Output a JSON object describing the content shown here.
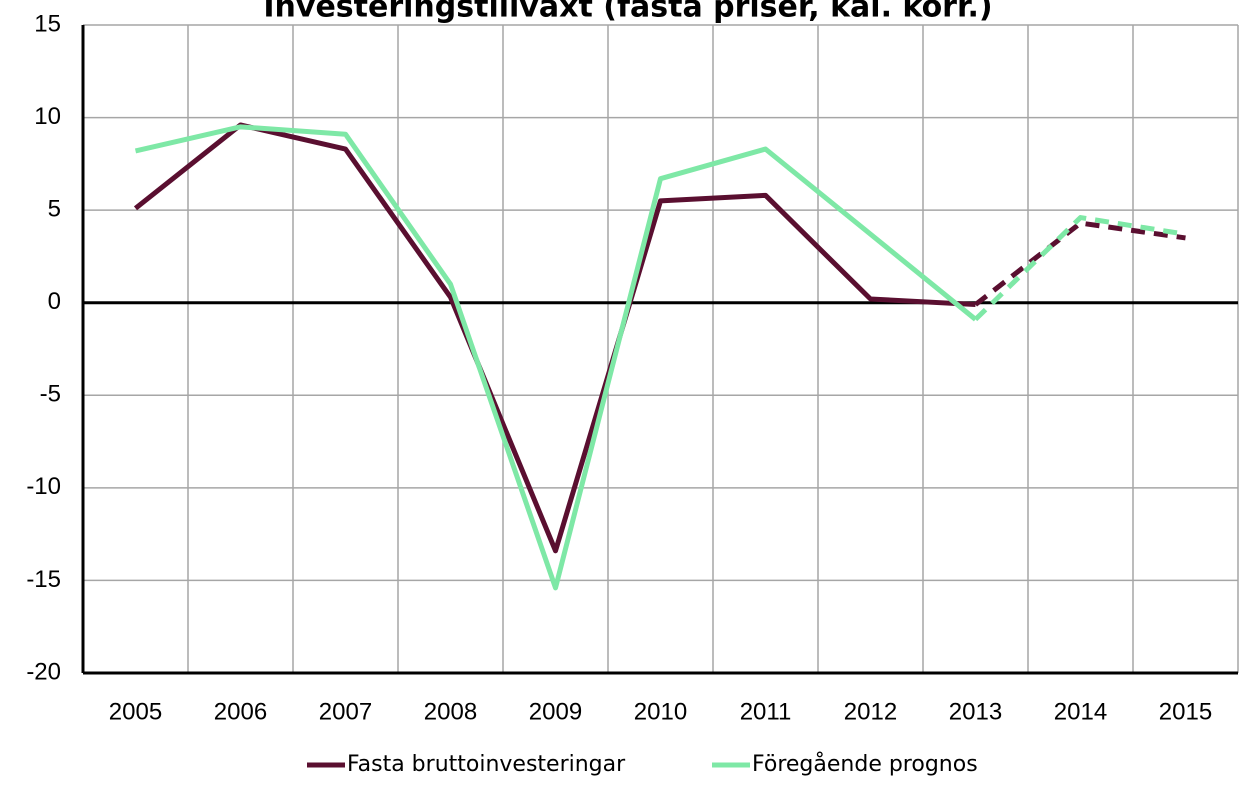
{
  "chart_data": {
    "type": "line",
    "title": "Investeringstillväxt (fasta priser, kal. korr.)",
    "categories": [
      "2005",
      "2006",
      "2007",
      "2008",
      "2009",
      "2010",
      "2011",
      "2012",
      "2013",
      "2014",
      "2015"
    ],
    "series": [
      {
        "name": "Fasta bruttoinvesteringar",
        "color": "#5a0f30",
        "values": [
          5.1,
          9.6,
          8.3,
          0.3,
          -13.4,
          5.5,
          5.8,
          0.2,
          -0.1,
          4.3,
          3.5
        ]
      },
      {
        "name": "Föregående prognos",
        "color": "#7ee8a6",
        "values": [
          8.2,
          9.5,
          9.1,
          1.0,
          -15.4,
          6.7,
          8.3,
          3.7,
          -0.9,
          4.6,
          3.7
        ]
      }
    ],
    "dashed_from_index": 8,
    "ylim": [
      -20,
      15
    ],
    "yticks": [
      -20,
      -15,
      -10,
      -5,
      0,
      5,
      10,
      15
    ],
    "grid": true,
    "legend": "bottom"
  }
}
